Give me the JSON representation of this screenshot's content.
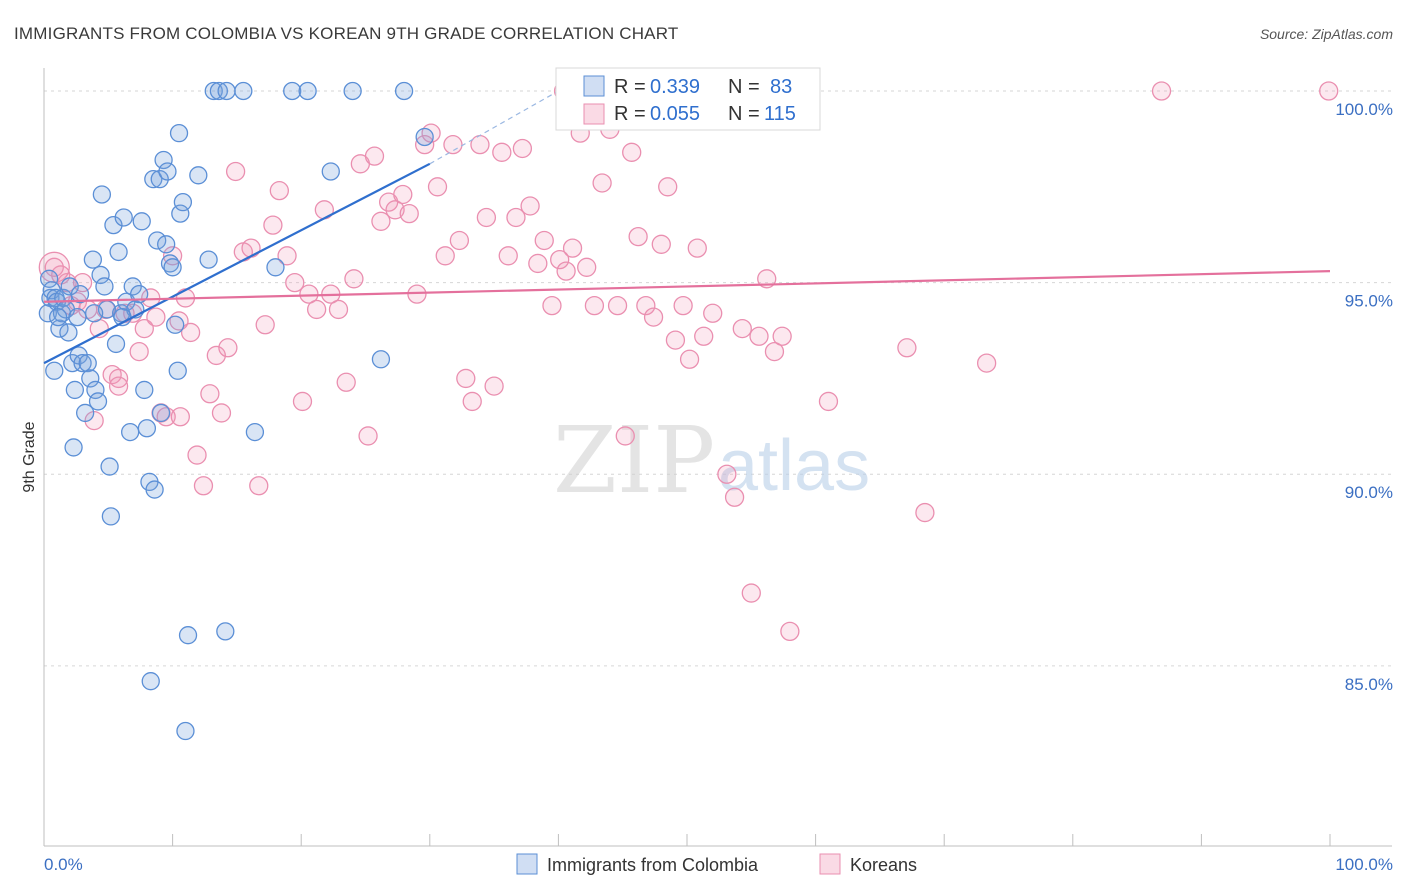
{
  "chart_data": {
    "type": "scatter",
    "title": "IMMIGRANTS FROM COLOMBIA VS KOREAN 9TH GRADE CORRELATION CHART",
    "source": "Source: ZipAtlas.com",
    "ylabel": "9th Grade",
    "xlabel": "",
    "xlim": [
      0,
      100
    ],
    "ylim": [
      80.3,
      100.6
    ],
    "y_ticks": [
      {
        "value": 100,
        "label": "100.0%"
      },
      {
        "value": 95,
        "label": "95.0%"
      },
      {
        "value": 90,
        "label": "90.0%"
      },
      {
        "value": 85,
        "label": "85.0%"
      }
    ],
    "x_ticks": [
      {
        "value": 0,
        "label": "0.0%"
      },
      {
        "value": 100,
        "label": "100.0%"
      }
    ],
    "watermark": {
      "zip": "ZIP",
      "atlas": "atlas"
    },
    "legend_stats": [
      {
        "r_label": "R = ",
        "r": "0.339",
        "n_label": "N = ",
        "n": "83"
      },
      {
        "r_label": "R = ",
        "r": "0.055",
        "n_label": "N = ",
        "n": "115"
      }
    ],
    "series": [
      {
        "name": "Immigrants from Colombia",
        "color": "#5b8fd6",
        "trend": {
          "x": [
            0,
            30
          ],
          "y": [
            92.9,
            98.1
          ],
          "dashed_to": [
            40,
            100.0
          ]
        },
        "points": [
          [
            0.3,
            94.2
          ],
          [
            0.4,
            95.1
          ],
          [
            0.5,
            94.6
          ],
          [
            0.6,
            94.8
          ],
          [
            0.8,
            92.7
          ],
          [
            0.9,
            94.6
          ],
          [
            1.0,
            94.5
          ],
          [
            1.2,
            93.8
          ],
          [
            1.4,
            94.2
          ],
          [
            1.5,
            94.6
          ],
          [
            1.7,
            94.3
          ],
          [
            1.9,
            93.7
          ],
          [
            2.0,
            94.9
          ],
          [
            2.2,
            92.9
          ],
          [
            2.3,
            90.7
          ],
          [
            2.4,
            92.2
          ],
          [
            2.6,
            94.1
          ],
          [
            2.7,
            93.1
          ],
          [
            3.0,
            92.9
          ],
          [
            3.2,
            91.6
          ],
          [
            3.4,
            92.9
          ],
          [
            3.6,
            92.5
          ],
          [
            3.8,
            95.6
          ],
          [
            4.0,
            92.2
          ],
          [
            4.2,
            91.9
          ],
          [
            4.4,
            95.2
          ],
          [
            4.5,
            97.3
          ],
          [
            4.7,
            94.9
          ],
          [
            4.9,
            94.3
          ],
          [
            5.1,
            90.2
          ],
          [
            5.2,
            88.9
          ],
          [
            5.4,
            96.5
          ],
          [
            5.6,
            93.4
          ],
          [
            5.8,
            95.8
          ],
          [
            6.0,
            94.2
          ],
          [
            6.2,
            96.7
          ],
          [
            6.4,
            94.5
          ],
          [
            6.7,
            91.1
          ],
          [
            6.9,
            94.9
          ],
          [
            7.1,
            94.3
          ],
          [
            7.4,
            94.7
          ],
          [
            7.6,
            96.6
          ],
          [
            7.8,
            92.2
          ],
          [
            8.0,
            91.2
          ],
          [
            8.2,
            89.8
          ],
          [
            8.3,
            84.6
          ],
          [
            8.5,
            97.7
          ],
          [
            8.6,
            89.6
          ],
          [
            8.8,
            96.1
          ],
          [
            9.0,
            97.7
          ],
          [
            9.1,
            91.6
          ],
          [
            9.3,
            98.2
          ],
          [
            9.5,
            96.0
          ],
          [
            9.6,
            97.9
          ],
          [
            9.8,
            95.5
          ],
          [
            10.0,
            95.4
          ],
          [
            10.2,
            93.9
          ],
          [
            10.4,
            92.7
          ],
          [
            10.5,
            98.9
          ],
          [
            10.6,
            96.8
          ],
          [
            10.8,
            97.1
          ],
          [
            11.0,
            83.3
          ],
          [
            11.2,
            85.8
          ],
          [
            12.0,
            97.8
          ],
          [
            12.8,
            95.6
          ],
          [
            13.2,
            100.0
          ],
          [
            13.6,
            100.0
          ],
          [
            14.1,
            85.9
          ],
          [
            14.2,
            100.0
          ],
          [
            15.5,
            100.0
          ],
          [
            16.4,
            91.1
          ],
          [
            18.0,
            95.4
          ],
          [
            19.3,
            100.0
          ],
          [
            20.5,
            100.0
          ],
          [
            22.3,
            97.9
          ],
          [
            24.0,
            100.0
          ],
          [
            26.2,
            93.0
          ],
          [
            28.0,
            100.0
          ],
          [
            29.6,
            98.8
          ],
          [
            1.1,
            94.1
          ],
          [
            2.8,
            94.7
          ],
          [
            6.1,
            94.1
          ],
          [
            3.9,
            94.2
          ]
        ]
      },
      {
        "name": "Koreans",
        "color": "#ea8fb0",
        "trend": {
          "x": [
            0,
            100
          ],
          "y": [
            94.5,
            95.3
          ]
        },
        "points": [
          [
            0.8,
            95.4
          ],
          [
            1.3,
            95.2
          ],
          [
            1.8,
            95.0
          ],
          [
            2.1,
            94.4
          ],
          [
            2.6,
            94.5
          ],
          [
            3.0,
            95.0
          ],
          [
            3.4,
            94.3
          ],
          [
            3.9,
            91.4
          ],
          [
            4.3,
            93.8
          ],
          [
            4.8,
            94.3
          ],
          [
            5.3,
            92.6
          ],
          [
            5.8,
            92.5
          ],
          [
            6.3,
            94.2
          ],
          [
            6.9,
            94.2
          ],
          [
            7.4,
            93.2
          ],
          [
            7.8,
            93.8
          ],
          [
            8.3,
            94.6
          ],
          [
            8.7,
            94.1
          ],
          [
            9.1,
            91.6
          ],
          [
            9.5,
            91.5
          ],
          [
            10.0,
            95.7
          ],
          [
            10.6,
            91.5
          ],
          [
            11.0,
            94.6
          ],
          [
            11.4,
            93.7
          ],
          [
            11.9,
            90.5
          ],
          [
            12.4,
            89.7
          ],
          [
            12.9,
            92.1
          ],
          [
            13.4,
            93.1
          ],
          [
            13.8,
            91.6
          ],
          [
            14.3,
            93.3
          ],
          [
            14.9,
            97.9
          ],
          [
            15.5,
            95.8
          ],
          [
            16.1,
            95.9
          ],
          [
            16.7,
            89.7
          ],
          [
            17.2,
            93.9
          ],
          [
            17.8,
            96.5
          ],
          [
            18.3,
            97.4
          ],
          [
            18.9,
            95.7
          ],
          [
            19.5,
            95.0
          ],
          [
            20.1,
            91.9
          ],
          [
            20.6,
            94.7
          ],
          [
            21.2,
            94.3
          ],
          [
            21.8,
            96.9
          ],
          [
            22.3,
            94.7
          ],
          [
            22.9,
            94.3
          ],
          [
            23.5,
            92.4
          ],
          [
            24.1,
            95.1
          ],
          [
            24.6,
            98.1
          ],
          [
            25.2,
            91.0
          ],
          [
            25.7,
            98.3
          ],
          [
            26.2,
            96.6
          ],
          [
            26.8,
            97.1
          ],
          [
            27.3,
            96.9
          ],
          [
            27.9,
            97.3
          ],
          [
            28.4,
            96.8
          ],
          [
            29.0,
            94.7
          ],
          [
            29.6,
            98.6
          ],
          [
            30.1,
            98.9
          ],
          [
            30.6,
            97.5
          ],
          [
            31.2,
            95.7
          ],
          [
            31.8,
            98.6
          ],
          [
            32.3,
            96.1
          ],
          [
            32.8,
            92.5
          ],
          [
            33.3,
            91.9
          ],
          [
            33.9,
            98.6
          ],
          [
            34.4,
            96.7
          ],
          [
            35.0,
            92.3
          ],
          [
            35.6,
            98.4
          ],
          [
            36.1,
            95.7
          ],
          [
            36.7,
            96.7
          ],
          [
            37.2,
            98.5
          ],
          [
            37.8,
            97.0
          ],
          [
            38.4,
            95.5
          ],
          [
            38.9,
            96.1
          ],
          [
            39.5,
            94.4
          ],
          [
            40.1,
            95.6
          ],
          [
            40.6,
            95.3
          ],
          [
            41.1,
            95.9
          ],
          [
            41.7,
            98.9
          ],
          [
            42.2,
            95.4
          ],
          [
            42.8,
            94.4
          ],
          [
            43.4,
            97.6
          ],
          [
            44.0,
            99.0
          ],
          [
            44.6,
            94.4
          ],
          [
            45.2,
            91.0
          ],
          [
            45.7,
            98.4
          ],
          [
            46.2,
            96.2
          ],
          [
            46.8,
            94.4
          ],
          [
            47.4,
            94.1
          ],
          [
            48.0,
            96.0
          ],
          [
            48.5,
            97.5
          ],
          [
            49.1,
            93.5
          ],
          [
            49.7,
            94.4
          ],
          [
            50.2,
            93.0
          ],
          [
            50.8,
            95.9
          ],
          [
            51.3,
            93.6
          ],
          [
            52.0,
            94.2
          ],
          [
            53.1,
            90.0
          ],
          [
            53.7,
            89.4
          ],
          [
            54.3,
            93.8
          ],
          [
            55.0,
            86.9
          ],
          [
            55.6,
            93.6
          ],
          [
            56.2,
            95.1
          ],
          [
            56.8,
            93.2
          ],
          [
            57.4,
            93.6
          ],
          [
            58.0,
            85.9
          ],
          [
            61.0,
            91.9
          ],
          [
            67.1,
            93.3
          ],
          [
            68.5,
            89.0
          ],
          [
            73.3,
            92.9
          ],
          [
            86.9,
            100.0
          ],
          [
            99.9,
            100.0
          ],
          [
            40.4,
            100.0
          ],
          [
            5.8,
            92.3
          ],
          [
            10.5,
            94.0
          ]
        ]
      }
    ]
  }
}
